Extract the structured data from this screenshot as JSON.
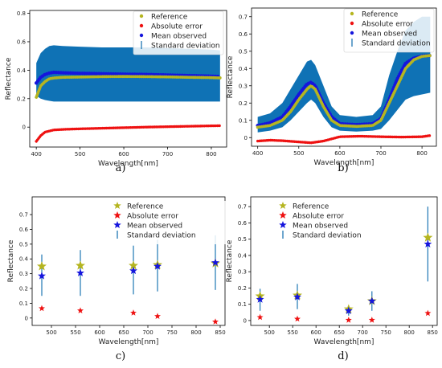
{
  "colors": {
    "reference": "#b5b520",
    "absolute_error": "#ee1111",
    "mean_observed": "#1515dd",
    "std": "#1f77b4",
    "band": "#0f72b5",
    "band_light": "#cfe6f3"
  },
  "chart_data": [
    {
      "type": "line",
      "caption": "a)",
      "xlabel": "Wavelength[nm]",
      "ylabel": "Reflectance",
      "xlim": [
        385,
        835
      ],
      "ylim": [
        -0.14,
        0.82
      ],
      "xticks": [
        400,
        500,
        600,
        700,
        800
      ],
      "yticks": [
        0.0,
        0.2,
        0.4,
        0.6,
        0.8
      ],
      "legend": [
        "Reference",
        "Absolute error",
        "Mean observed",
        "Standard deviation"
      ],
      "legend_placement": "upper-right",
      "grid": false,
      "series": [
        {
          "name": "Reference",
          "x": [
            400,
            410,
            420,
            430,
            440,
            460,
            500,
            550,
            600,
            650,
            700,
            750,
            800,
            820
          ],
          "y": [
            0.21,
            0.29,
            0.32,
            0.34,
            0.345,
            0.35,
            0.352,
            0.355,
            0.356,
            0.355,
            0.353,
            0.35,
            0.348,
            0.346
          ]
        },
        {
          "name": "Absolute error",
          "x": [
            400,
            410,
            420,
            440,
            470,
            500,
            550,
            600,
            650,
            700,
            750,
            800,
            820
          ],
          "y": [
            -0.1,
            -0.06,
            -0.035,
            -0.02,
            -0.015,
            -0.012,
            -0.008,
            -0.004,
            0.0,
            0.003,
            0.006,
            0.009,
            0.01
          ]
        },
        {
          "name": "Mean observed",
          "x": [
            400,
            410,
            420,
            430,
            440,
            460,
            500,
            550,
            600,
            650,
            700,
            750,
            800,
            820
          ],
          "y": [
            0.31,
            0.35,
            0.37,
            0.38,
            0.385,
            0.382,
            0.378,
            0.375,
            0.372,
            0.37,
            0.366,
            0.362,
            0.358,
            0.355
          ]
        },
        {
          "name": "Standard deviation",
          "x": [
            400,
            410,
            420,
            430,
            440,
            460,
            500,
            550,
            600,
            650,
            700,
            750,
            800,
            820
          ],
          "lower": [
            0.22,
            0.2,
            0.19,
            0.185,
            0.18,
            0.18,
            0.18,
            0.18,
            0.18,
            0.18,
            0.18,
            0.18,
            0.18,
            0.18
          ],
          "upper": [
            0.45,
            0.52,
            0.55,
            0.57,
            0.575,
            0.57,
            0.565,
            0.56,
            0.56,
            0.56,
            0.555,
            0.55,
            0.545,
            0.54
          ]
        }
      ]
    },
    {
      "type": "line",
      "caption": "b)",
      "xlabel": "Wavelength[nm]",
      "ylabel": "Reflectance",
      "xlim": [
        385,
        835
      ],
      "ylim": [
        -0.05,
        0.75
      ],
      "xticks": [
        400,
        500,
        600,
        700,
        800
      ],
      "yticks": [
        0.0,
        0.1,
        0.2,
        0.3,
        0.4,
        0.5,
        0.6,
        0.7
      ],
      "legend": [
        "Reference",
        "Absolute error",
        "Mean observed",
        "Standard deviation"
      ],
      "legend_placement": "upper-right",
      "grid": false,
      "series": [
        {
          "name": "Reference",
          "x": [
            400,
            430,
            460,
            480,
            500,
            520,
            530,
            540,
            560,
            580,
            600,
            640,
            680,
            700,
            720,
            740,
            760,
            780,
            800,
            820
          ],
          "y": [
            0.06,
            0.07,
            0.1,
            0.15,
            0.22,
            0.28,
            0.3,
            0.28,
            0.18,
            0.1,
            0.07,
            0.065,
            0.07,
            0.1,
            0.2,
            0.3,
            0.4,
            0.45,
            0.47,
            0.475
          ]
        },
        {
          "name": "Absolute error",
          "x": [
            400,
            430,
            460,
            500,
            530,
            560,
            600,
            650,
            700,
            750,
            800,
            820
          ],
          "y": [
            -0.02,
            -0.015,
            -0.018,
            -0.025,
            -0.03,
            -0.02,
            0.005,
            0.008,
            0.005,
            0.003,
            0.005,
            0.012
          ]
        },
        {
          "name": "Mean observed",
          "x": [
            400,
            430,
            460,
            480,
            500,
            520,
            530,
            540,
            560,
            580,
            600,
            640,
            680,
            700,
            720,
            740,
            760,
            780,
            800,
            820
          ],
          "y": [
            0.07,
            0.085,
            0.12,
            0.18,
            0.25,
            0.31,
            0.32,
            0.3,
            0.2,
            0.12,
            0.08,
            0.075,
            0.08,
            0.11,
            0.22,
            0.34,
            0.43,
            0.46,
            0.472,
            0.475
          ]
        },
        {
          "name": "Standard deviation",
          "x": [
            400,
            430,
            460,
            480,
            500,
            520,
            530,
            540,
            560,
            580,
            600,
            640,
            680,
            700,
            720,
            740,
            760,
            780,
            800,
            820
          ],
          "lower": [
            0.03,
            0.04,
            0.06,
            0.1,
            0.15,
            0.2,
            0.22,
            0.2,
            0.12,
            0.06,
            0.04,
            0.035,
            0.04,
            0.05,
            0.1,
            0.16,
            0.22,
            0.24,
            0.25,
            0.26
          ],
          "upper": [
            0.12,
            0.14,
            0.2,
            0.28,
            0.36,
            0.44,
            0.45,
            0.42,
            0.3,
            0.18,
            0.13,
            0.12,
            0.13,
            0.18,
            0.36,
            0.5,
            0.62,
            0.67,
            0.7,
            0.7
          ]
        }
      ]
    },
    {
      "type": "scatter",
      "caption": "c)",
      "xlabel": "Wavelength[nm]",
      "ylabel": "Reflectance",
      "xlim": [
        460,
        860
      ],
      "ylim": [
        -0.05,
        0.82
      ],
      "xticks": [
        500,
        550,
        600,
        650,
        700,
        750,
        800,
        850
      ],
      "yticks": [
        0.0,
        0.1,
        0.2,
        0.3,
        0.4,
        0.5,
        0.6,
        0.7
      ],
      "legend": [
        "Reference",
        "Absolute error",
        "Mean observed",
        "Standard deviation"
      ],
      "legend_placement": "upper-right",
      "grid": false,
      "series": [
        {
          "name": "Reference",
          "x": [
            480,
            560,
            670,
            720,
            840
          ],
          "y": [
            0.35,
            0.355,
            0.355,
            0.36,
            0.37
          ]
        },
        {
          "name": "Absolute error",
          "x": [
            480,
            560,
            670,
            720,
            840
          ],
          "y": [
            0.065,
            0.05,
            0.035,
            0.012,
            -0.025
          ]
        },
        {
          "name": "Mean observed",
          "x": [
            480,
            560,
            670,
            720,
            840
          ],
          "y": [
            0.285,
            0.305,
            0.32,
            0.35,
            0.375
          ]
        },
        {
          "name": "Standard deviation",
          "x": [
            480,
            560,
            670,
            720,
            840
          ],
          "lower": [
            0.15,
            0.15,
            0.16,
            0.18,
            0.19
          ],
          "upper": [
            0.43,
            0.46,
            0.49,
            0.53,
            0.56
          ]
        }
      ]
    },
    {
      "type": "scatter",
      "caption": "d)",
      "xlabel": "Wavelength[nm]",
      "ylabel": "Reflectance",
      "xlim": [
        460,
        860
      ],
      "ylim": [
        -0.03,
        0.76
      ],
      "xticks": [
        500,
        550,
        600,
        650,
        700,
        750,
        800,
        850
      ],
      "yticks": [
        0.0,
        0.1,
        0.2,
        0.3,
        0.4,
        0.5,
        0.6,
        0.7
      ],
      "legend": [
        "Reference",
        "Absolute error",
        "Mean observed",
        "Standard deviation"
      ],
      "legend_placement": "upper-right",
      "grid": false,
      "series": [
        {
          "name": "Reference",
          "x": [
            480,
            560,
            670,
            720,
            840
          ],
          "y": [
            0.15,
            0.155,
            0.07,
            0.12,
            0.51
          ]
        },
        {
          "name": "Absolute error",
          "x": [
            480,
            560,
            670,
            720,
            840
          ],
          "y": [
            0.02,
            0.01,
            0.003,
            0.003,
            0.045
          ]
        },
        {
          "name": "Mean observed",
          "x": [
            480,
            560,
            670,
            720,
            840
          ],
          "y": [
            0.13,
            0.145,
            0.06,
            0.12,
            0.47
          ]
        },
        {
          "name": "Standard deviation",
          "x": [
            480,
            560,
            670,
            720,
            840
          ],
          "lower": [
            0.06,
            0.07,
            0.03,
            0.06,
            0.24
          ],
          "upper": [
            0.195,
            0.225,
            0.09,
            0.18,
            0.7
          ]
        }
      ]
    }
  ]
}
